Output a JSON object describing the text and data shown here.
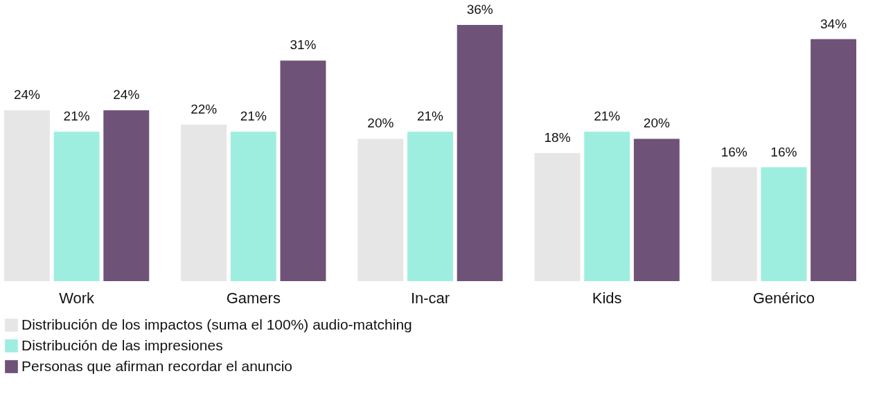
{
  "chart_data": {
    "type": "bar",
    "categories": [
      "Work",
      "Gamers",
      "In-car",
      "Kids",
      "Genérico"
    ],
    "series": [
      {
        "name": "Distribución de los impactos (suma el 100%) audio-matching",
        "color": "#e6e6e6",
        "values": [
          24,
          22,
          20,
          18,
          16
        ],
        "value_labels": [
          "24%",
          "22%",
          "20%",
          "18%",
          "16%"
        ]
      },
      {
        "name": "Distribución de las impresiones",
        "color": "#9eeee0",
        "values": [
          21,
          21,
          21,
          21,
          16
        ],
        "value_labels": [
          "21%",
          "21%",
          "21%",
          "21%",
          "16%"
        ]
      },
      {
        "name": "Personas que afirman recordar el anuncio",
        "color": "#6e5278",
        "values": [
          24,
          31,
          36,
          20,
          34
        ],
        "value_labels": [
          "24%",
          "31%",
          "36%",
          "20%",
          "34%"
        ]
      }
    ],
    "legend": "bottom",
    "grid": false
  }
}
